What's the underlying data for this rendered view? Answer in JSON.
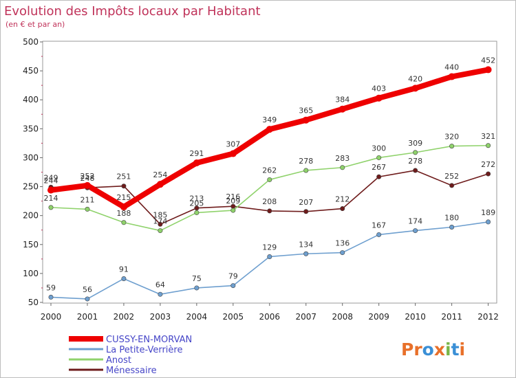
{
  "chart_data": {
    "type": "line",
    "title": "Evolution des Impôts locaux par Habitant",
    "subtitle": "(en € et par an)",
    "x": [
      "2000",
      "2001",
      "2002",
      "2003",
      "2004",
      "2005",
      "2006",
      "2007",
      "2008",
      "2009",
      "2010",
      "2011",
      "2012"
    ],
    "y_ticks": [
      "50",
      "100",
      "150",
      "200",
      "250",
      "300",
      "350",
      "400",
      "450",
      "500"
    ],
    "ylim": [
      50,
      500
    ],
    "grid": false,
    "legend_position": "bottom-left",
    "series": [
      {
        "name": "Ménessaire",
        "color": "#6e1b1b",
        "values": [
          249,
          248,
          251,
          185,
          213,
          216,
          208,
          207,
          212,
          267,
          278,
          252,
          272
        ]
      },
      {
        "name": "Anost",
        "color": "#8fd26b",
        "values": [
          214,
          211,
          188,
          174,
          205,
          209,
          262,
          278,
          283,
          300,
          309,
          320,
          321
        ]
      },
      {
        "name": "La Petite-Verrière",
        "color": "#6e9fcf",
        "values": [
          59,
          56,
          91,
          64,
          75,
          79,
          129,
          134,
          136,
          167,
          174,
          180,
          189
        ]
      },
      {
        "name": "CUSSY-EN-MORVAN",
        "color": "#ee0000",
        "values": [
          244,
          252,
          215,
          254,
          291,
          307,
          349,
          365,
          384,
          403,
          420,
          440,
          452
        ]
      }
    ],
    "legend_order": [
      3,
      2,
      1,
      0
    ]
  },
  "logo": {
    "text": "Proxiti",
    "colors": [
      "#e8702a",
      "#e8702a",
      "#3a8fd6",
      "#e8702a",
      "#7ab648",
      "#3a8fd6",
      "#e8702a"
    ]
  }
}
